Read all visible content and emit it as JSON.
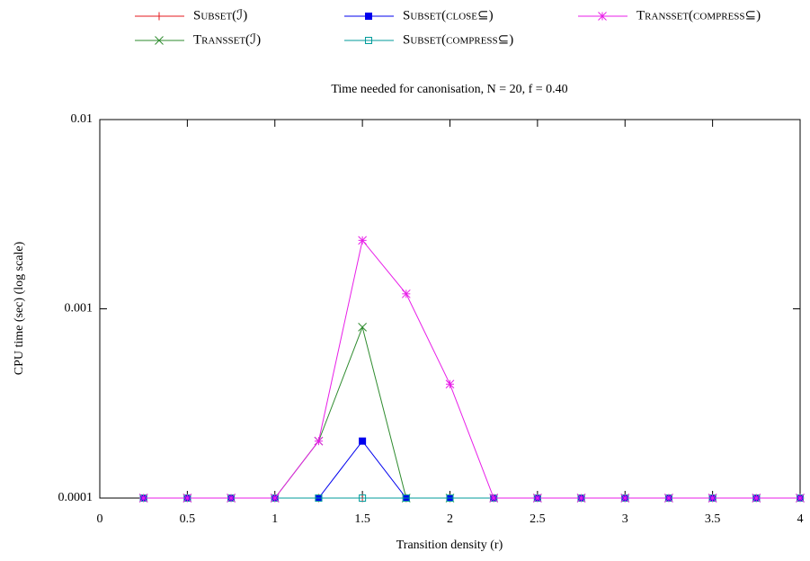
{
  "chart_data": {
    "type": "line",
    "title": "Time needed for canonisation, N = 20, f = 0.40",
    "xlabel": "Transition density (r)",
    "ylabel": "CPU time (sec) (log scale)",
    "x": [
      0.25,
      0.5,
      0.75,
      1,
      1.25,
      1.5,
      1.75,
      2,
      2.25,
      2.5,
      2.75,
      3,
      3.25,
      3.5,
      3.75,
      4
    ],
    "xlim": [
      0,
      4
    ],
    "xticks": [
      0,
      0.5,
      1,
      1.5,
      2,
      2.5,
      3,
      3.5,
      4
    ],
    "ylim": [
      0.0001,
      0.01
    ],
    "yticks": [
      0.0001,
      0.001,
      0.01
    ],
    "log_y": true,
    "series": [
      {
        "name": "Subset(ℐ)",
        "color": "#e41a1c",
        "marker": "plus",
        "values": [
          0.0001,
          0.0001,
          0.0001,
          0.0001,
          0.0001,
          0.0001,
          0.0001,
          0.0001,
          0.0001,
          0.0001,
          0.0001,
          0.0001,
          0.0001,
          0.0001,
          0.0001,
          0.0001
        ]
      },
      {
        "name": "Transset(ℐ)",
        "color": "#2e8b2e",
        "marker": "cross",
        "values": [
          0.0001,
          0.0001,
          0.0001,
          0.0001,
          0.0002,
          0.0008,
          0.0001,
          0.0001,
          0.0001,
          0.0001,
          0.0001,
          0.0001,
          0.0001,
          0.0001,
          0.0001,
          0.0001
        ]
      },
      {
        "name": "Subset(close⊆)",
        "color": "#0000ee",
        "marker": "square-filled",
        "values": [
          0.0001,
          0.0001,
          0.0001,
          0.0001,
          0.0001,
          0.0002,
          0.0001,
          0.0001,
          0.0001,
          0.0001,
          0.0001,
          0.0001,
          0.0001,
          0.0001,
          0.0001,
          0.0001
        ]
      },
      {
        "name": "Subset(compress⊆)",
        "color": "#009b9b",
        "marker": "square-open",
        "values": [
          0.0001,
          0.0001,
          0.0001,
          0.0001,
          0.0001,
          0.0001,
          0.0001,
          0.0001,
          0.0001,
          0.0001,
          0.0001,
          0.0001,
          0.0001,
          0.0001,
          0.0001,
          0.0001
        ]
      },
      {
        "name": "Transset(compress⊆)",
        "color": "#e81ee8",
        "marker": "star",
        "values": [
          0.0001,
          0.0001,
          0.0001,
          0.0001,
          0.0002,
          0.0023,
          0.0012,
          0.0004,
          0.0001,
          0.0001,
          0.0001,
          0.0001,
          0.0001,
          0.0001,
          0.0001,
          0.0001
        ]
      }
    ]
  }
}
